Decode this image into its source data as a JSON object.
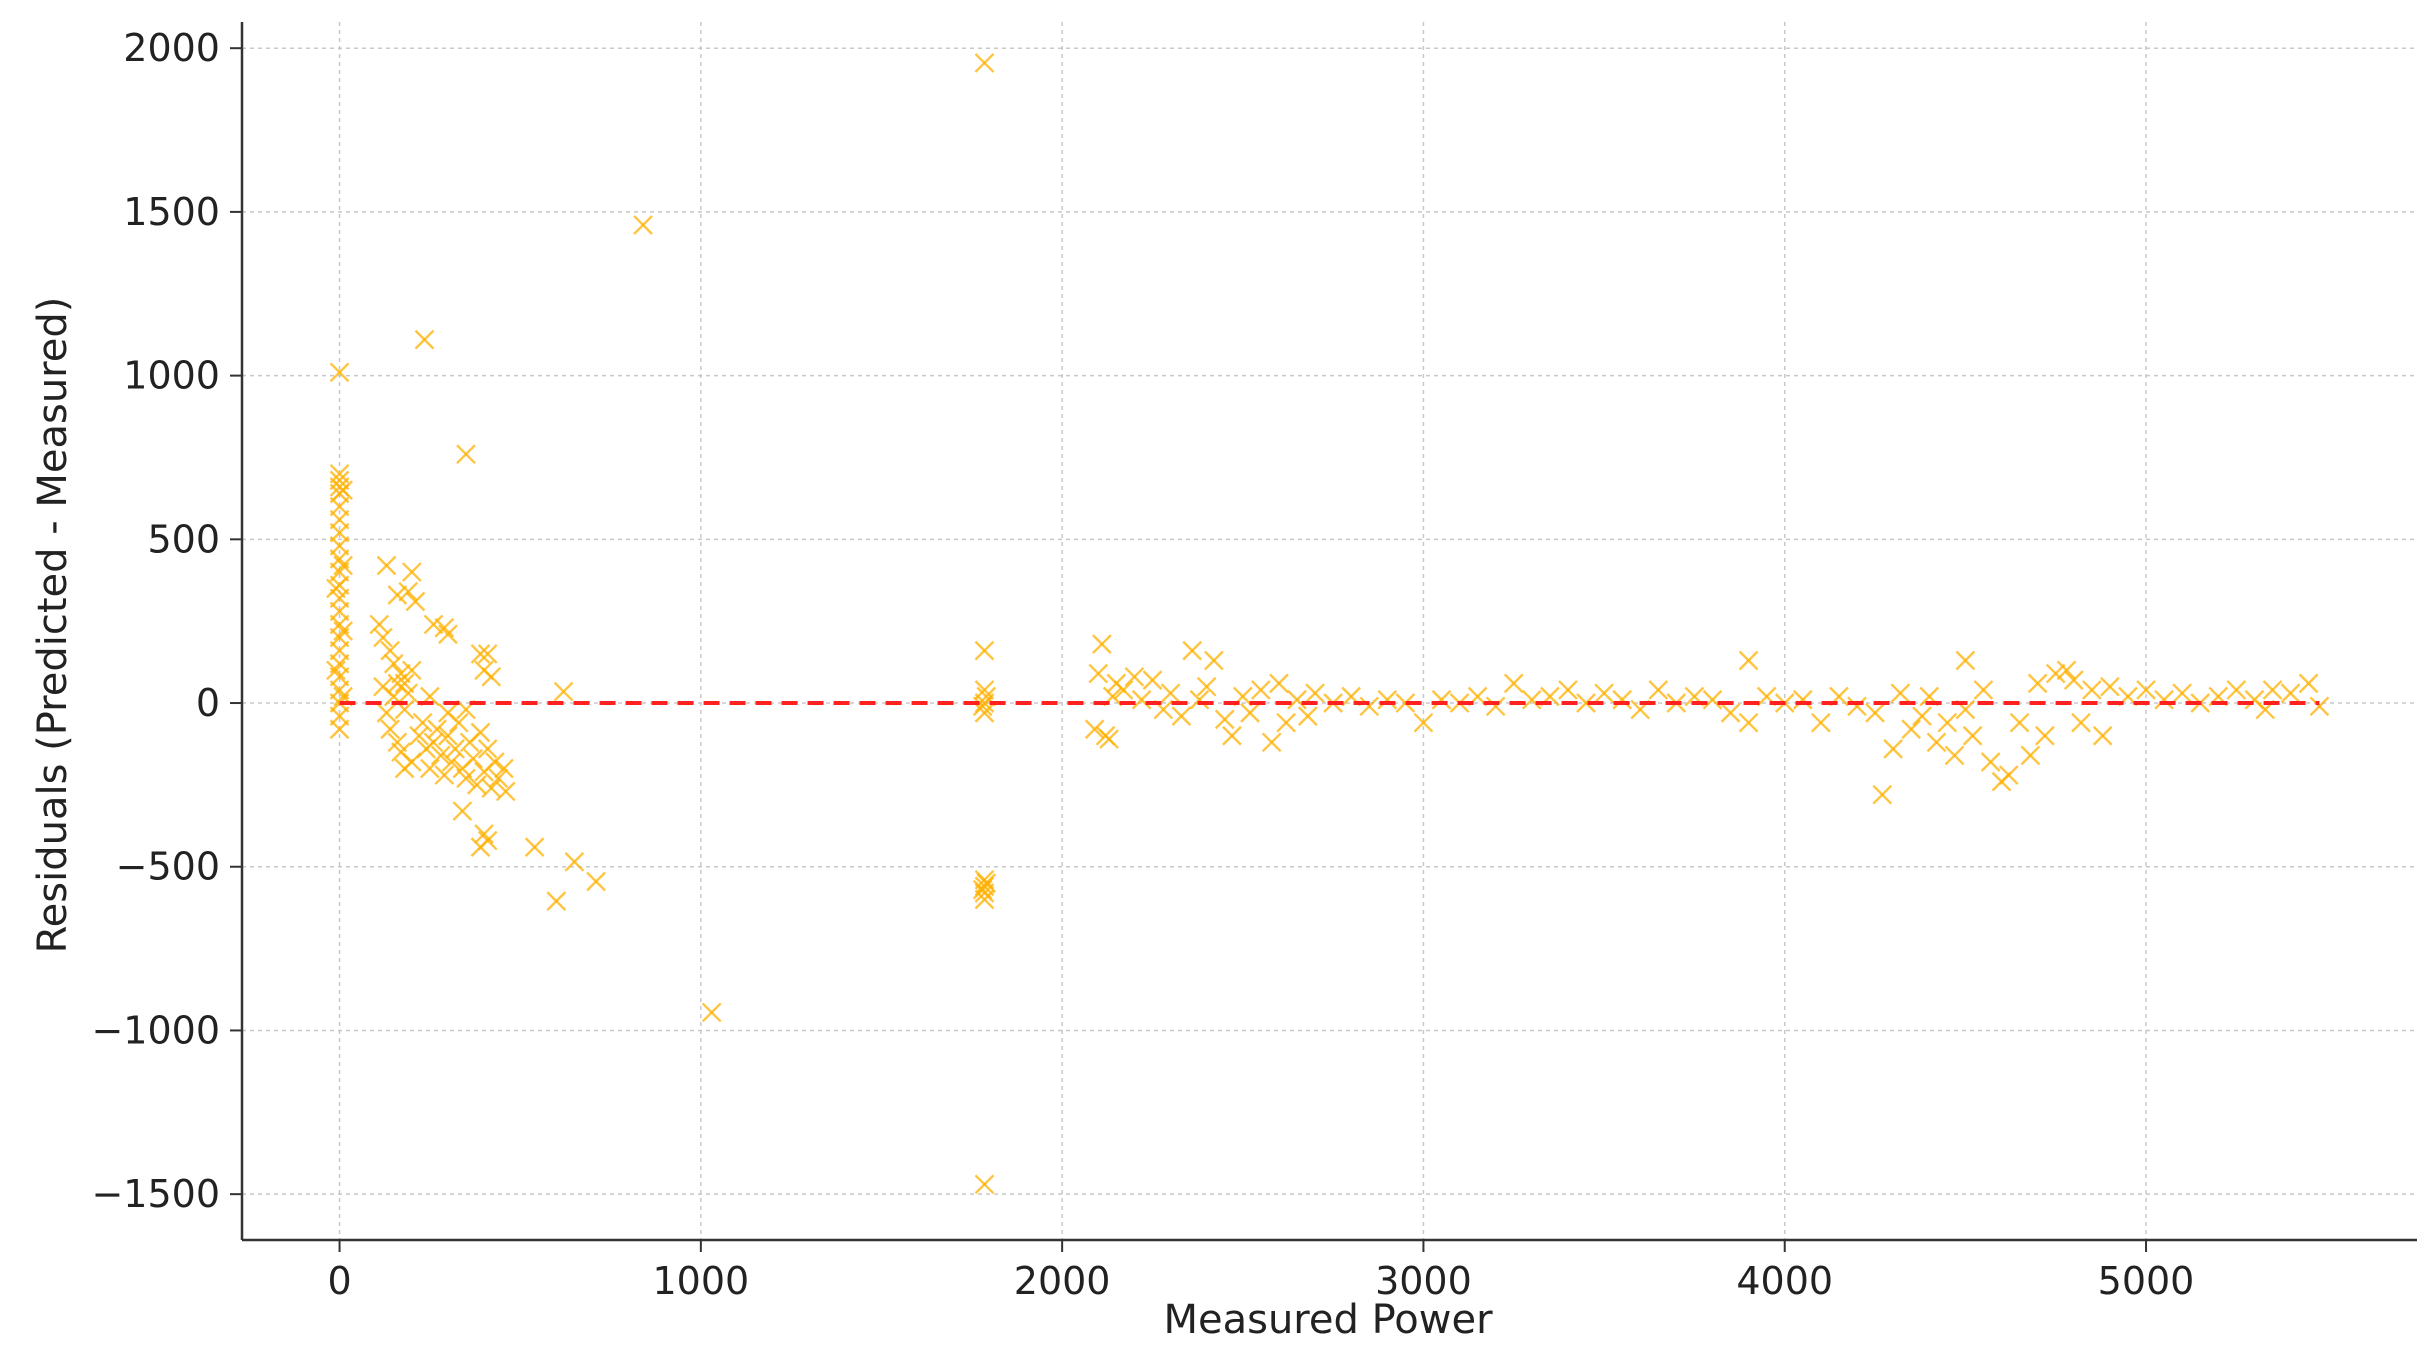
{
  "chart_data": {
    "type": "scatter",
    "title": "",
    "xlabel": "Measured Power",
    "ylabel": "Residuals (Predicted - Measured)",
    "xlim": [
      -270,
      5750
    ],
    "ylim": [
      -1640,
      2080
    ],
    "xticks": [
      0,
      1000,
      2000,
      3000,
      4000,
      5000
    ],
    "yticks": [
      -1500,
      -1000,
      -500,
      0,
      500,
      1000,
      1500,
      2000
    ],
    "xtick_labels": [
      "0",
      "1000",
      "2000",
      "3000",
      "4000",
      "5000"
    ],
    "ytick_labels": [
      "−1500",
      "−1000",
      "−500",
      "0",
      "500",
      "1000",
      "1500",
      "2000"
    ],
    "grid": true,
    "marker": "x",
    "series": [
      {
        "color": "#FFB000",
        "points": [
          [
            0,
            1010
          ],
          [
            0,
            700
          ],
          [
            0,
            680
          ],
          [
            0,
            660
          ],
          [
            0,
            640
          ],
          [
            0,
            600
          ],
          [
            0,
            560
          ],
          [
            0,
            520
          ],
          [
            0,
            480
          ],
          [
            0,
            440
          ],
          [
            0,
            400
          ],
          [
            0,
            360
          ],
          [
            0,
            320
          ],
          [
            0,
            280
          ],
          [
            0,
            240
          ],
          [
            0,
            200
          ],
          [
            0,
            160
          ],
          [
            0,
            120
          ],
          [
            0,
            80
          ],
          [
            0,
            40
          ],
          [
            0,
            0
          ],
          [
            0,
            -40
          ],
          [
            0,
            -80
          ],
          [
            10,
            650
          ],
          [
            10,
            420
          ],
          [
            10,
            220
          ],
          [
            10,
            20
          ],
          [
            -10,
            350
          ],
          [
            -10,
            100
          ],
          [
            235,
            1110
          ],
          [
            350,
            760
          ],
          [
            840,
            1460
          ],
          [
            1785,
            1955
          ],
          [
            1030,
            -945
          ],
          [
            1785,
            -1470
          ],
          [
            620,
            35
          ],
          [
            540,
            -440
          ],
          [
            600,
            -605
          ],
          [
            650,
            -485
          ],
          [
            710,
            -545
          ],
          [
            400,
            -400
          ],
          [
            390,
            -440
          ],
          [
            410,
            -420
          ],
          [
            340,
            -330
          ],
          [
            455,
            -200
          ],
          [
            460,
            -270
          ],
          [
            130,
            420
          ],
          [
            200,
            400
          ],
          [
            190,
            340
          ],
          [
            160,
            330
          ],
          [
            210,
            310
          ],
          [
            260,
            240
          ],
          [
            290,
            230
          ],
          [
            300,
            210
          ],
          [
            390,
            150
          ],
          [
            410,
            150
          ],
          [
            420,
            80
          ],
          [
            400,
            100
          ],
          [
            110,
            240
          ],
          [
            120,
            200
          ],
          [
            140,
            160
          ],
          [
            150,
            120
          ],
          [
            170,
            90
          ],
          [
            180,
            60
          ],
          [
            190,
            30
          ],
          [
            120,
            50
          ],
          [
            130,
            -30
          ],
          [
            140,
            -80
          ],
          [
            150,
            20
          ],
          [
            160,
            -120
          ],
          [
            170,
            -150
          ],
          [
            180,
            -200
          ],
          [
            200,
            -180
          ],
          [
            220,
            -100
          ],
          [
            230,
            -60
          ],
          [
            240,
            -140
          ],
          [
            250,
            -200
          ],
          [
            260,
            -120
          ],
          [
            270,
            -80
          ],
          [
            280,
            -160
          ],
          [
            290,
            -220
          ],
          [
            300,
            -100
          ],
          [
            310,
            -180
          ],
          [
            320,
            -140
          ],
          [
            330,
            -60
          ],
          [
            340,
            -200
          ],
          [
            350,
            -230
          ],
          [
            360,
            -120
          ],
          [
            370,
            -170
          ],
          [
            380,
            -250
          ],
          [
            390,
            -90
          ],
          [
            400,
            -210
          ],
          [
            410,
            -140
          ],
          [
            420,
            -260
          ],
          [
            430,
            -180
          ],
          [
            440,
            -230
          ],
          [
            250,
            20
          ],
          [
            200,
            100
          ],
          [
            180,
            -20
          ],
          [
            160,
            60
          ],
          [
            300,
            -30
          ],
          [
            350,
            -20
          ],
          [
            1785,
            160
          ],
          [
            1785,
            40
          ],
          [
            1785,
            0
          ],
          [
            1785,
            -30
          ],
          [
            1790,
            20
          ],
          [
            1780,
            -10
          ],
          [
            1785,
            -540
          ],
          [
            1785,
            -560
          ],
          [
            1785,
            -580
          ],
          [
            1785,
            -600
          ],
          [
            1790,
            -550
          ],
          [
            1780,
            -570
          ],
          [
            2110,
            180
          ],
          [
            2100,
            90
          ],
          [
            2090,
            -80
          ],
          [
            2120,
            -100
          ],
          [
            2130,
            -110
          ],
          [
            2140,
            20
          ],
          [
            2150,
            60
          ],
          [
            2170,
            40
          ],
          [
            2200,
            80
          ],
          [
            2220,
            10
          ],
          [
            2250,
            70
          ],
          [
            2280,
            -20
          ],
          [
            2300,
            30
          ],
          [
            2330,
            -40
          ],
          [
            2360,
            160
          ],
          [
            2380,
            10
          ],
          [
            2400,
            50
          ],
          [
            2420,
            130
          ],
          [
            2450,
            -50
          ],
          [
            2470,
            -100
          ],
          [
            2500,
            20
          ],
          [
            2520,
            -30
          ],
          [
            2550,
            40
          ],
          [
            2580,
            -120
          ],
          [
            2600,
            60
          ],
          [
            2620,
            -60
          ],
          [
            2650,
            10
          ],
          [
            2680,
            -40
          ],
          [
            2700,
            30
          ],
          [
            2750,
            0
          ],
          [
            2800,
            20
          ],
          [
            2850,
            -10
          ],
          [
            2900,
            10
          ],
          [
            2950,
            0
          ],
          [
            3000,
            -60
          ],
          [
            3050,
            10
          ],
          [
            3100,
            0
          ],
          [
            3150,
            20
          ],
          [
            3200,
            -10
          ],
          [
            3250,
            60
          ],
          [
            3300,
            10
          ],
          [
            3350,
            20
          ],
          [
            3400,
            40
          ],
          [
            3450,
            0
          ],
          [
            3500,
            30
          ],
          [
            3550,
            10
          ],
          [
            3600,
            -20
          ],
          [
            3650,
            40
          ],
          [
            3700,
            0
          ],
          [
            3750,
            20
          ],
          [
            3800,
            10
          ],
          [
            3850,
            -30
          ],
          [
            3900,
            130
          ],
          [
            3900,
            -60
          ],
          [
            3950,
            20
          ],
          [
            4000,
            0
          ],
          [
            4050,
            10
          ],
          [
            4100,
            -60
          ],
          [
            4150,
            20
          ],
          [
            4200,
            -10
          ],
          [
            4250,
            -30
          ],
          [
            4270,
            -280
          ],
          [
            4300,
            -140
          ],
          [
            4320,
            30
          ],
          [
            4350,
            -80
          ],
          [
            4380,
            -40
          ],
          [
            4400,
            20
          ],
          [
            4420,
            -120
          ],
          [
            4450,
            -60
          ],
          [
            4470,
            -160
          ],
          [
            4500,
            130
          ],
          [
            4500,
            -20
          ],
          [
            4520,
            -100
          ],
          [
            4550,
            40
          ],
          [
            4570,
            -180
          ],
          [
            4600,
            -240
          ],
          [
            4620,
            -220
          ],
          [
            4650,
            -60
          ],
          [
            4680,
            -160
          ],
          [
            4700,
            60
          ],
          [
            4720,
            -100
          ],
          [
            4750,
            90
          ],
          [
            4780,
            100
          ],
          [
            4800,
            70
          ],
          [
            4820,
            -60
          ],
          [
            4850,
            40
          ],
          [
            4880,
            -100
          ],
          [
            4900,
            50
          ],
          [
            4950,
            20
          ],
          [
            5000,
            40
          ],
          [
            5050,
            10
          ],
          [
            5100,
            30
          ],
          [
            5150,
            0
          ],
          [
            5200,
            20
          ],
          [
            5250,
            40
          ],
          [
            5300,
            10
          ],
          [
            5330,
            -20
          ],
          [
            5350,
            40
          ],
          [
            5400,
            30
          ],
          [
            5450,
            60
          ],
          [
            5480,
            -10
          ]
        ]
      }
    ],
    "reference_line": {
      "y": 0,
      "color": "#FF2020",
      "style": "dashed"
    }
  }
}
